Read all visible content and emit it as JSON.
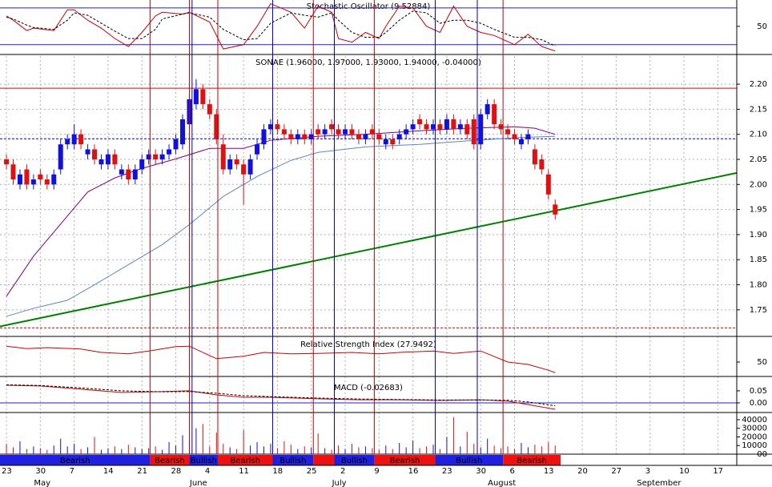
{
  "chart_data": [
    {
      "type": "line",
      "title": "Stochastic Oscillator (9.52884)",
      "x": [
        0,
        1,
        3,
        4,
        7,
        9,
        10,
        12,
        14,
        16,
        18,
        20,
        22,
        23,
        26,
        27,
        30,
        32,
        35,
        37,
        39,
        42,
        44,
        46,
        48,
        49,
        51,
        53,
        55,
        56,
        58,
        60,
        62,
        64,
        66,
        68,
        70,
        72,
        75,
        77,
        79,
        81
      ],
      "series": [
        {
          "color": "#cc0000",
          "values": [
            67,
            60,
            43,
            47,
            43,
            77,
            77,
            60,
            47,
            30,
            17,
            40,
            67,
            73,
            70,
            73,
            57,
            13,
            20,
            50,
            87,
            73,
            47,
            83,
            73,
            30,
            24,
            40,
            30,
            50,
            83,
            80,
            50,
            40,
            83,
            50,
            40,
            35,
            20,
            37,
            17,
            9.52884
          ]
        },
        {
          "color": "#000000",
          "dash": true,
          "values": [
            65,
            62,
            52,
            48,
            45,
            60,
            72,
            68,
            55,
            42,
            30,
            30,
            45,
            62,
            70,
            72,
            65,
            45,
            28,
            30,
            55,
            72,
            68,
            65,
            72,
            60,
            40,
            32,
            32,
            40,
            60,
            75,
            72,
            55,
            60,
            60,
            55,
            45,
            32,
            32,
            28,
            18
          ]
        }
      ],
      "ylim": [
        4,
        93
      ],
      "yticks": [
        50
      ],
      "hlines": [
        80,
        20
      ]
    },
    {
      "type": "candlestick",
      "title": "SONAE (1.96000, 1.97000, 1.93000, 1.94000, -0.04000)",
      "open": [
        2.05,
        2.04,
        2.0,
        2.03,
        2.0,
        2.02,
        2.01,
        2.0,
        2.03,
        2.08,
        2.08,
        2.1,
        2.06,
        2.07,
        2.04,
        2.04,
        2.06,
        2.02,
        2.03,
        2.01,
        2.03,
        2.05,
        2.06,
        2.05,
        2.06,
        2.07,
        2.08,
        2.12,
        2.16,
        2.19,
        2.16,
        2.14,
        2.08,
        2.03,
        2.05,
        2.04,
        2.02,
        2.06,
        2.08,
        2.11,
        2.12,
        2.11,
        2.1,
        2.09,
        2.1,
        2.09,
        2.11,
        2.1,
        2.12,
        2.11,
        2.1,
        2.11,
        2.1,
        2.09,
        2.11,
        2.1,
        2.08,
        2.09,
        2.09,
        2.1,
        2.11,
        2.13,
        2.12,
        2.11,
        2.12,
        2.11,
        2.13,
        2.11,
        2.12,
        2.13,
        2.08,
        2.14,
        2.16,
        2.12,
        2.11,
        2.1,
        2.08,
        2.09,
        2.07,
        2.05,
        2.02,
        1.96
      ],
      "high": [
        2.06,
        2.05,
        2.03,
        2.04,
        2.02,
        2.03,
        2.02,
        2.03,
        2.09,
        2.1,
        2.12,
        2.11,
        2.08,
        2.08,
        2.06,
        2.07,
        2.07,
        2.04,
        2.04,
        2.04,
        2.06,
        2.07,
        2.07,
        2.07,
        2.08,
        2.1,
        2.14,
        2.18,
        2.21,
        2.2,
        2.17,
        2.15,
        2.1,
        2.06,
        2.06,
        2.05,
        2.06,
        2.09,
        2.12,
        2.13,
        2.13,
        2.12,
        2.11,
        2.11,
        2.11,
        2.11,
        2.12,
        2.12,
        2.13,
        2.12,
        2.12,
        2.12,
        2.11,
        2.11,
        2.12,
        2.11,
        2.1,
        2.1,
        2.11,
        2.12,
        2.13,
        2.14,
        2.13,
        2.13,
        2.13,
        2.14,
        2.14,
        2.13,
        2.13,
        2.14,
        2.15,
        2.17,
        2.17,
        2.13,
        2.12,
        2.11,
        2.1,
        2.11,
        2.08,
        2.06,
        2.03,
        1.97
      ],
      "low": [
        2.03,
        2.0,
        1.99,
        1.99,
        1.99,
        2.0,
        1.99,
        1.99,
        2.02,
        2.07,
        2.07,
        2.07,
        2.05,
        2.04,
        2.03,
        2.03,
        2.03,
        2.01,
        2.0,
        2.0,
        2.02,
        2.04,
        2.04,
        2.04,
        2.05,
        2.06,
        2.07,
        2.11,
        2.15,
        2.15,
        2.13,
        2.08,
        2.02,
        2.02,
        2.03,
        1.96,
        2.01,
        2.05,
        2.07,
        2.1,
        2.1,
        2.09,
        2.08,
        2.08,
        2.08,
        2.08,
        2.09,
        2.09,
        2.1,
        2.09,
        2.09,
        2.09,
        2.08,
        2.08,
        2.09,
        2.08,
        2.07,
        2.07,
        2.08,
        2.09,
        2.1,
        2.11,
        2.1,
        2.1,
        2.1,
        2.1,
        2.1,
        2.1,
        2.09,
        2.07,
        2.07,
        2.13,
        2.11,
        2.1,
        2.09,
        2.08,
        2.07,
        2.08,
        2.03,
        2.02,
        1.97,
        1.93
      ],
      "close": [
        2.04,
        2.01,
        2.02,
        2.0,
        2.01,
        2.01,
        2.0,
        2.02,
        2.08,
        2.09,
        2.1,
        2.08,
        2.07,
        2.05,
        2.05,
        2.06,
        2.04,
        2.03,
        2.01,
        2.03,
        2.05,
        2.06,
        2.05,
        2.06,
        2.07,
        2.09,
        2.13,
        2.17,
        2.19,
        2.16,
        2.14,
        2.09,
        2.03,
        2.05,
        2.04,
        2.02,
        2.05,
        2.08,
        2.11,
        2.12,
        2.11,
        2.1,
        2.09,
        2.1,
        2.09,
        2.1,
        2.1,
        2.11,
        2.11,
        2.1,
        2.11,
        2.1,
        2.09,
        2.1,
        2.1,
        2.09,
        2.09,
        2.08,
        2.1,
        2.11,
        2.12,
        2.12,
        2.11,
        2.12,
        2.11,
        2.13,
        2.11,
        2.12,
        2.1,
        2.08,
        2.14,
        2.16,
        2.12,
        2.11,
        2.1,
        2.09,
        2.09,
        2.1,
        2.04,
        2.03,
        1.98,
        1.94
      ],
      "up_color": "#1010e0",
      "down_color": "#e01010",
      "lines": [
        {
          "color": "#800080",
          "x": [
            0,
            4,
            9,
            12,
            16,
            20,
            25,
            30,
            35,
            39,
            46,
            53,
            61,
            68,
            75,
            78,
            81
          ],
          "values": [
            1.777,
            1.857,
            1.937,
            1.985,
            2.013,
            2.032,
            2.051,
            2.072,
            2.072,
            2.088,
            2.096,
            2.1,
            2.107,
            2.112,
            2.115,
            2.112,
            2.1
          ]
        },
        {
          "color": "#5b86c6",
          "x": [
            0,
            4,
            9,
            13,
            18,
            23,
            27,
            32,
            37,
            42,
            46,
            53,
            61,
            68,
            75,
            81
          ],
          "values": [
            1.737,
            1.753,
            1.769,
            1.8,
            1.84,
            1.88,
            1.92,
            1.976,
            2.016,
            2.048,
            2.064,
            2.075,
            2.08,
            2.087,
            2.093,
            2.096
          ]
        },
        {
          "color": "#008000",
          "x": [
            -0.95,
            107.8
          ],
          "values": [
            1.717,
            2.023
          ]
        }
      ],
      "hlines": [
        {
          "value": 2.192,
          "color": "#ee0000"
        },
        {
          "value": 2.091,
          "color": "#0000aa",
          "dash": true
        },
        {
          "value": 1.714,
          "color": "#ee0000",
          "dash": true
        }
      ],
      "vlines": [
        {
          "x": 21.2,
          "color": "#cc0000"
        },
        {
          "x": 27,
          "color": "#cc0000"
        },
        {
          "x": 31.2,
          "color": "#cc0000"
        },
        {
          "x": 45.3,
          "color": "#cc0000"
        },
        {
          "x": 54.3,
          "color": "#cc0000"
        },
        {
          "x": 73.3,
          "color": "#cc0000"
        },
        {
          "x": 27.4,
          "color": "#0000cc"
        },
        {
          "x": 39.3,
          "color": "#0000cc"
        },
        {
          "x": 48.4,
          "color": "#0000cc"
        },
        {
          "x": 63.3,
          "color": "#0000cc"
        },
        {
          "x": 69.5,
          "color": "#0000cc"
        }
      ],
      "ylim": [
        1.697,
        2.256
      ],
      "yticks": [
        {
          "value": 2.2,
          "label": "2.20"
        },
        2.15,
        {
          "value": 2.1,
          "label": "2.10"
        },
        2.05,
        {
          "value": 2,
          "label": "2.00"
        },
        1.95,
        {
          "value": 1.9,
          "label": "1.90"
        },
        1.85,
        {
          "value": 1.8,
          "label": "1.80"
        },
        1.75
      ],
      "grid": true
    },
    {
      "type": "line",
      "title": "Relative Strength Index (27.9492)",
      "x": [
        0,
        3,
        6,
        11,
        14,
        18,
        21,
        25,
        27,
        31,
        35,
        38,
        42,
        46,
        51,
        55,
        58,
        63,
        66,
        70,
        74,
        77,
        80,
        81
      ],
      "series": [
        {
          "color": "#cc0000",
          "values": [
            83,
            78,
            80,
            77,
            70,
            67,
            73,
            82,
            83,
            57,
            62,
            70,
            67,
            68,
            70,
            67,
            70,
            73,
            68,
            73,
            50,
            45,
            33,
            27.9492
          ]
        }
      ],
      "ylim": [
        20,
        100
      ],
      "yticks": [
        50
      ],
      "hlines": []
    },
    {
      "type": "line",
      "title": "MACD (-0.02683)",
      "x": [
        0,
        5,
        11,
        17,
        23,
        27,
        31,
        35,
        39,
        46,
        52,
        58,
        64,
        70,
        74,
        77,
        81
      ],
      "series": [
        {
          "color": "#cc0000",
          "values": [
            0.073,
            0.07,
            0.057,
            0.043,
            0.047,
            0.05,
            0.033,
            0.023,
            0.023,
            0.017,
            0.013,
            0.013,
            0.01,
            0.013,
            0.007,
            -0.007,
            -0.02683
          ]
        },
        {
          "color": "#000000",
          "dash": true,
          "values": [
            0.075,
            0.072,
            0.062,
            0.05,
            0.046,
            0.047,
            0.04,
            0.03,
            0.026,
            0.02,
            0.016,
            0.014,
            0.012,
            0.012,
            0.011,
            0.004,
            -0.012
          ]
        }
      ],
      "ylim": [
        -0.04,
        0.103
      ],
      "yticks": [
        0.05,
        {
          "value": 0,
          "label": "0.00"
        }
      ],
      "hlines": [
        0
      ]
    },
    {
      "type": "bar",
      "values": [
        12000,
        8000,
        15000,
        6000,
        9000,
        7000,
        5000,
        10000,
        18000,
        9000,
        12000,
        6000,
        8000,
        20000,
        5000,
        7000,
        9000,
        6000,
        11000,
        8000,
        6000,
        7000,
        9000,
        5000,
        14000,
        10000,
        22000,
        16000,
        30000,
        35000,
        9000,
        25000,
        12000,
        8000,
        6000,
        28000,
        10000,
        14000,
        9000,
        12000,
        7000,
        15000,
        11000,
        6000,
        9000,
        8000,
        24000,
        7000,
        5000,
        10000,
        6000,
        12000,
        8000,
        9000,
        7000,
        5000,
        10000,
        6000,
        13000,
        8000,
        16000,
        7000,
        9000,
        11000,
        6000,
        20000,
        43000,
        9000,
        26000,
        12000,
        8000,
        18000,
        10000,
        7000,
        9000,
        6000,
        13000,
        8000,
        11000,
        9000,
        14000,
        10000
      ],
      "ylim": [
        0,
        46500
      ],
      "yticks": [
        40000,
        30000,
        20000,
        10000,
        {
          "value": 0,
          "label": "00"
        }
      ],
      "xlim": [
        -0.95,
        107.8
      ],
      "xticks": [
        {
          "value": 0,
          "label": "23"
        },
        {
          "value": 5,
          "label": "30"
        },
        {
          "value": 10,
          "label": "7"
        },
        {
          "value": 15,
          "label": "14"
        },
        {
          "value": 20,
          "label": "21"
        },
        {
          "value": 25,
          "label": "28"
        },
        {
          "value": 30,
          "label": "4"
        },
        {
          "value": 35,
          "label": "11"
        },
        {
          "value": 40,
          "label": "18"
        },
        {
          "value": 45,
          "label": "25"
        },
        {
          "value": 50,
          "label": "2"
        },
        {
          "value": 55,
          "label": "9"
        },
        {
          "value": 60,
          "label": "16"
        },
        {
          "value": 65,
          "label": "23"
        },
        {
          "value": 70,
          "label": "30"
        },
        {
          "value": 75,
          "label": "6"
        },
        {
          "value": 80,
          "label": "13"
        },
        {
          "value": 85,
          "label": "20"
        },
        {
          "value": 90,
          "label": "27"
        },
        {
          "value": 95,
          "label": "3"
        },
        {
          "value": 100,
          "label": "10"
        },
        {
          "value": 105,
          "label": "17"
        }
      ],
      "month_ticks": [
        {
          "value": 5,
          "label": "May"
        },
        {
          "value": 28,
          "label": "June"
        },
        {
          "value": 49,
          "label": "July"
        },
        {
          "value": 72,
          "label": "August"
        },
        {
          "value": 94,
          "label": "September"
        }
      ],
      "bands": [
        {
          "from": -0.95,
          "to": 21.2,
          "color": "#2020e0",
          "label": "Bearish"
        },
        {
          "from": 21.2,
          "to": 27,
          "color": "#ee1111",
          "label": "Bearish"
        },
        {
          "from": 27,
          "to": 31.2,
          "color": "#2020e0",
          "label": "Bullish"
        },
        {
          "from": 31.2,
          "to": 39.3,
          "color": "#ee1111",
          "label": "Bearish"
        },
        {
          "from": 39.3,
          "to": 45.3,
          "color": "#2020e0",
          "label": "Bullish"
        },
        {
          "from": 45.3,
          "to": 48.4,
          "color": "#ee1111",
          "label": null
        },
        {
          "from": 48.4,
          "to": 54.3,
          "color": "#2020e0",
          "label": "Bullish"
        },
        {
          "from": 54.3,
          "to": 63.3,
          "color": "#ee1111",
          "label": "Bearish"
        },
        {
          "from": 63.3,
          "to": 73.3,
          "color": "#2020e0",
          "label": "Bullish"
        },
        {
          "from": 73.3,
          "to": 81.8,
          "color": "#ee1111",
          "label": "Bearish"
        }
      ]
    }
  ]
}
